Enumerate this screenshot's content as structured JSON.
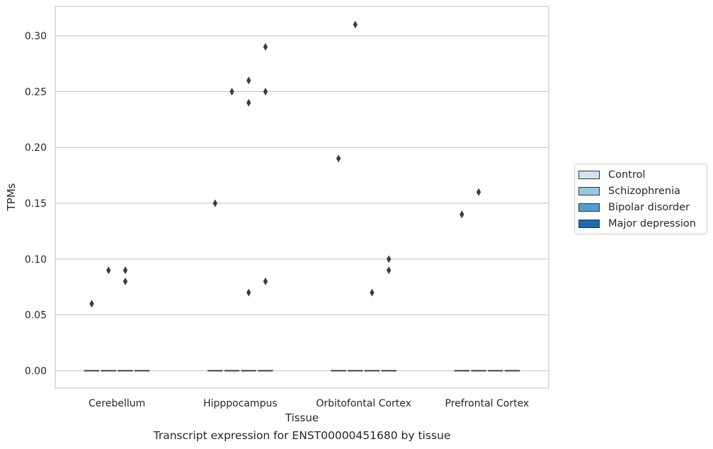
{
  "chart_data": {
    "type": "box",
    "title": "",
    "caption": "Transcript expression for ENST00000451680 by tissue",
    "xlabel": "Tissue",
    "ylabel": "TPMs",
    "ylim": [
      -0.015,
      0.325
    ],
    "yticks": [
      0.0,
      0.05,
      0.1,
      0.15,
      0.2,
      0.25,
      0.3
    ],
    "ytick_labels": [
      "0.00",
      "0.05",
      "0.10",
      "0.15",
      "0.20",
      "0.25",
      "0.30"
    ],
    "grid": "horizontal",
    "legend_position": "right",
    "categories": [
      "Cerebellum",
      "Hipppocampus",
      "Orbitofontal Cortex",
      "Prefrontal Cortex"
    ],
    "series": [
      {
        "name": "Control",
        "color": "#d1e3f3",
        "median": [
          0,
          0,
          0,
          0
        ],
        "outliers": [
          [
            0.06
          ],
          [
            0.15
          ],
          [
            0.19
          ],
          [
            0.14
          ]
        ]
      },
      {
        "name": "Schizophrenia",
        "color": "#9ac8e0",
        "median": [
          0,
          0,
          0,
          0
        ],
        "outliers": [
          [
            0.09
          ],
          [
            0.25
          ],
          [
            0.31
          ],
          [
            0.16
          ]
        ]
      },
      {
        "name": "Bipolar disorder",
        "color": "#529dcc",
        "median": [
          0,
          0,
          0,
          0
        ],
        "outliers": [
          [
            0.08,
            0.09
          ],
          [
            0.07,
            0.24,
            0.26
          ],
          [
            0.07
          ],
          []
        ]
      },
      {
        "name": "Major depression",
        "color": "#1c6aaf",
        "median": [
          0,
          0,
          0,
          0
        ],
        "outliers": [
          [],
          [
            0.08,
            0.25,
            0.29
          ],
          [
            0.09,
            0.1
          ],
          []
        ]
      }
    ]
  }
}
